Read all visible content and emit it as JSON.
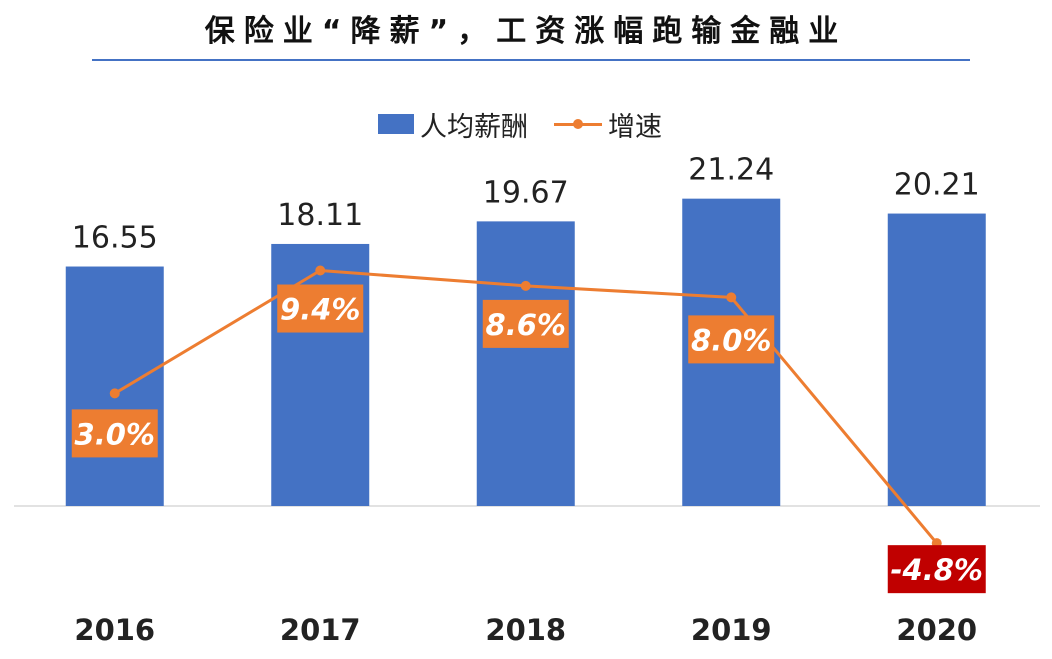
{
  "chart_data": {
    "type": "bar+line",
    "title": "保险业“降薪”，工资涨幅跑输金融业",
    "categories": [
      "2016",
      "2017",
      "2018",
      "2019",
      "2020"
    ],
    "series": [
      {
        "name": "人均薪酬",
        "type": "bar",
        "values": [
          16.55,
          18.11,
          19.67,
          21.24,
          20.21
        ],
        "labels": [
          "16.55",
          "18.11",
          "19.67",
          "21.24",
          "20.21"
        ],
        "color": "#4472c4"
      },
      {
        "name": "增速",
        "type": "line",
        "values": [
          3.0,
          9.4,
          8.6,
          8.0,
          -4.8
        ],
        "labels": [
          "3.0%",
          "9.4%",
          "8.6%",
          "8.0%",
          "-4.8%"
        ],
        "color": "#ed7d31",
        "negative_label_color": "#c00000"
      }
    ],
    "legend": "top-center",
    "grid": false
  }
}
